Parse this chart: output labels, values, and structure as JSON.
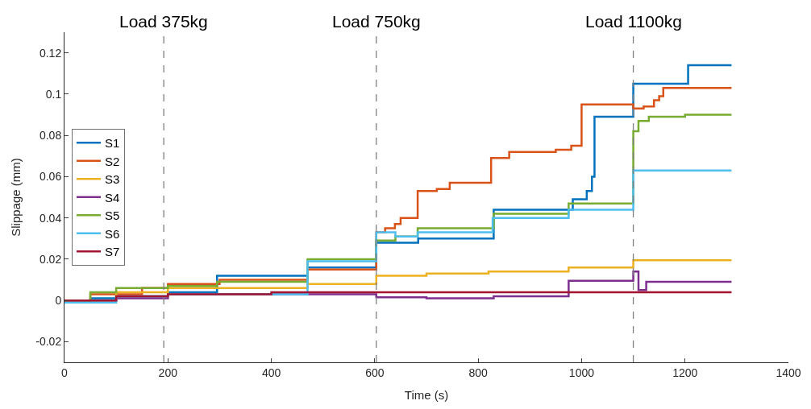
{
  "chart_data": {
    "type": "step",
    "xlabel": "Time (s)",
    "ylabel": "Slippage (mm)",
    "xlim": [
      0,
      1400
    ],
    "xticks": [
      0,
      200,
      400,
      600,
      800,
      1000,
      1200,
      1400
    ],
    "ylim": [
      -0.03,
      0.13
    ],
    "yticks": [
      -0.02,
      0,
      0.02,
      0.04,
      0.06,
      0.08,
      0.1,
      0.12
    ],
    "legend": "left",
    "line_style": "solid",
    "marker": "none",
    "ref_lines": [
      {
        "axis": "x",
        "value": 192,
        "label": "Load 375kg",
        "color": "#808080",
        "line_style": "dashed"
      },
      {
        "axis": "x",
        "value": 603,
        "label": "Load 750kg",
        "color": "#808080",
        "line_style": "dashed"
      },
      {
        "axis": "x",
        "value": 1100,
        "label": "Load 1100kg",
        "color": "#808080",
        "line_style": "dashed"
      }
    ],
    "series": [
      {
        "name": "S1",
        "color": "#0072bd",
        "x": [
          0,
          50,
          100,
          200,
          295,
          470,
          603,
          684,
          830,
          983,
          1010,
          1020,
          1025,
          1100,
          1206,
          1290
        ],
        "values": [
          -0.001,
          0.001,
          0.002,
          0.004,
          0.012,
          0.016,
          0.028,
          0.03,
          0.044,
          0.049,
          0.053,
          0.06,
          0.089,
          0.105,
          0.114,
          0.114
        ]
      },
      {
        "name": "S2",
        "color": "#d95319",
        "x": [
          0,
          50,
          150,
          200,
          300,
          470,
          603,
          620,
          639,
          650,
          683,
          720,
          745,
          825,
          860,
          950,
          980,
          1000,
          1100,
          1120,
          1140,
          1150,
          1158,
          1290
        ],
        "values": [
          0,
          0.003,
          0.006,
          0.008,
          0.01,
          0.015,
          0.033,
          0.035,
          0.037,
          0.04,
          0.053,
          0.054,
          0.057,
          0.069,
          0.072,
          0.073,
          0.075,
          0.095,
          0.093,
          0.094,
          0.097,
          0.099,
          0.103,
          0.103
        ]
      },
      {
        "name": "S3",
        "color": "#edb120",
        "x": [
          0,
          100,
          200,
          470,
          603,
          700,
          820,
          975,
          1100,
          1290
        ],
        "values": [
          0,
          0.004,
          0.006,
          0.008,
          0.012,
          0.013,
          0.014,
          0.016,
          0.0195,
          0.0195
        ]
      },
      {
        "name": "S4",
        "color": "#7e2f8e",
        "x": [
          0,
          100,
          200,
          603,
          700,
          830,
          975,
          1100,
          1110,
          1125,
          1290
        ],
        "values": [
          0,
          0.001,
          0.003,
          0.0015,
          0.001,
          0.002,
          0.0095,
          0.014,
          0.005,
          0.009,
          0.009
        ]
      },
      {
        "name": "S5",
        "color": "#77ac30",
        "x": [
          0,
          50,
          100,
          200,
          295,
          470,
          603,
          640,
          683,
          830,
          975,
          1100,
          1110,
          1130,
          1200,
          1290
        ],
        "values": [
          0,
          0.004,
          0.006,
          0.007,
          0.009,
          0.02,
          0.029,
          0.031,
          0.035,
          0.042,
          0.047,
          0.082,
          0.087,
          0.089,
          0.09,
          0.09
        ]
      },
      {
        "name": "S6",
        "color": "#4dbeee",
        "x": [
          0,
          100,
          200,
          470,
          603,
          640,
          683,
          828,
          975,
          1100,
          1290
        ],
        "values": [
          -0.001,
          0.002,
          0.003,
          0.019,
          0.033,
          0.031,
          0.033,
          0.04,
          0.044,
          0.063,
          0.063
        ]
      },
      {
        "name": "S7",
        "color": "#a2142f",
        "x": [
          0,
          100,
          200,
          400,
          1290
        ],
        "values": [
          0,
          0.002,
          0.003,
          0.004,
          0.004
        ]
      }
    ]
  }
}
